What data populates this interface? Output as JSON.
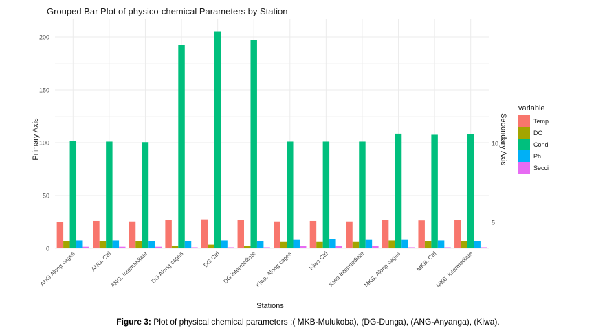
{
  "chart_data": {
    "type": "bar",
    "title": "Grouped Bar Plot of physico-chemical Parameters by Station",
    "xlabel": "Stations",
    "ylabel": "Primary Axis",
    "y2label": "Secondary Axis",
    "ylim": [
      0,
      208
    ],
    "yticks": [
      0,
      50,
      100,
      150,
      200
    ],
    "y2ticks": [
      "5",
      "10"
    ],
    "grid": true,
    "legend": {
      "title": "variable",
      "placement": "right"
    },
    "categories": [
      "ANG Along cages",
      "ANG. Ctrl",
      "ANG. Intermediate",
      "DG Along cages",
      "DG Ctrl",
      "DG intermediate",
      "Kiwa. Along cages",
      "Kiwa Ctrl",
      "Kiwa Intermediate",
      "MKB. Along cages",
      "MKB. Ctrl",
      "MKB. Intermediate"
    ],
    "series": [
      {
        "name": "Temp",
        "color": "#F8766D",
        "values": [
          25,
          26,
          25.5,
          27,
          27.5,
          27,
          25.5,
          26,
          25.5,
          27,
          26.5,
          27
        ]
      },
      {
        "name": "DO",
        "color": "#A3A500",
        "values": [
          7,
          7,
          6.5,
          2.5,
          3.5,
          2.5,
          6,
          6,
          6,
          7.5,
          7,
          7
        ]
      },
      {
        "name": "Cond",
        "color": "#00BF7D",
        "values": [
          101.5,
          101,
          100.5,
          192.5,
          205.5,
          197,
          101,
          101,
          101,
          108.5,
          107.5,
          108
        ]
      },
      {
        "name": "Ph",
        "color": "#00B0F6",
        "values": [
          7.5,
          7.5,
          6.5,
          6.5,
          7.5,
          6.5,
          8,
          8.5,
          8,
          8,
          7.5,
          7
        ]
      },
      {
        "name": "Secci",
        "color": "#E76BF3",
        "values": [
          1.5,
          1.5,
          1.5,
          1,
          1,
          1,
          2.5,
          2.5,
          2.5,
          1,
          1,
          1
        ]
      }
    ]
  },
  "caption": {
    "label": "Figure 3:",
    "text": " Plot of physical chemical parameters :( MKB-Mulukoba), (DG-Dunga), (ANG-Anyanga), (Kiwa)."
  }
}
